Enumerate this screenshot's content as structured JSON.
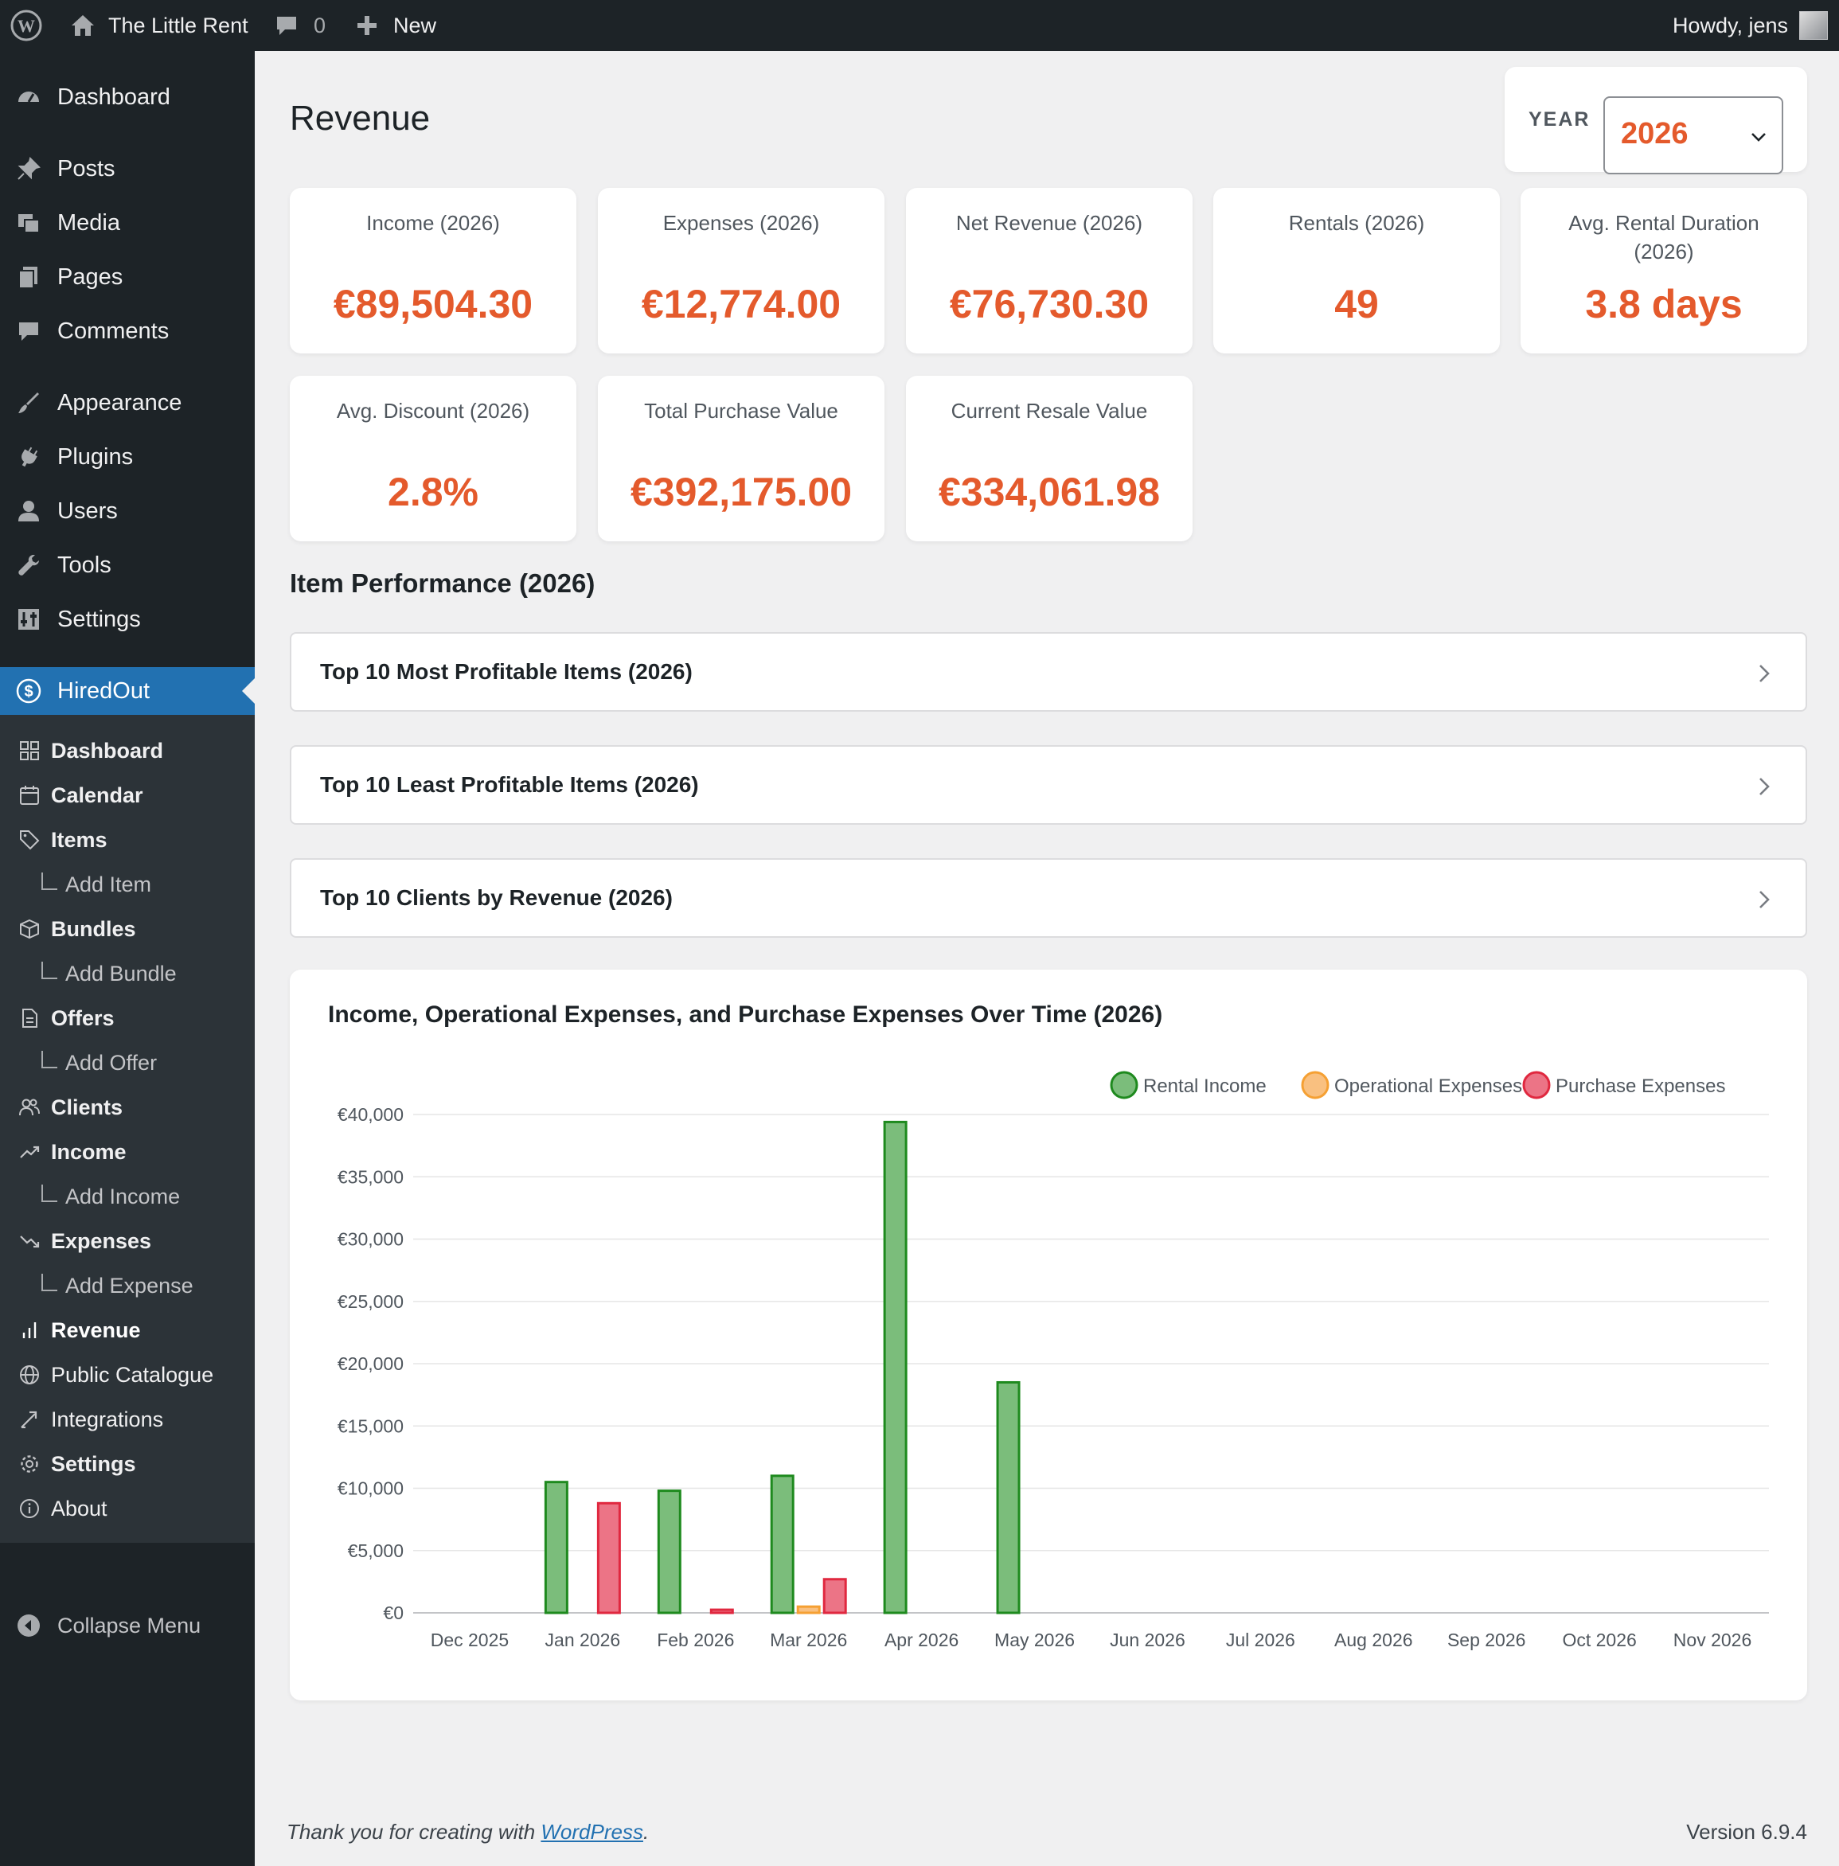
{
  "adminbar": {
    "site_name": "The Little Rent",
    "comments_count": "0",
    "new_label": "New",
    "howdy": "Howdy, jens"
  },
  "sidebar": {
    "items": [
      {
        "label": "Dashboard",
        "icon": "dashboard-icon"
      },
      {
        "label": "Posts",
        "icon": "pin-icon"
      },
      {
        "label": "Media",
        "icon": "media-icon"
      },
      {
        "label": "Pages",
        "icon": "pages-icon"
      },
      {
        "label": "Comments",
        "icon": "comment-icon"
      },
      {
        "label": "Appearance",
        "icon": "brush-icon"
      },
      {
        "label": "Plugins",
        "icon": "plugin-icon"
      },
      {
        "label": "Users",
        "icon": "user-icon"
      },
      {
        "label": "Tools",
        "icon": "wrench-icon"
      },
      {
        "label": "Settings",
        "icon": "settings-icon"
      },
      {
        "label": "HiredOut",
        "icon": "dollar-icon"
      }
    ],
    "submenu": [
      {
        "label": "Dashboard"
      },
      {
        "label": "Calendar"
      },
      {
        "label": "Items"
      },
      {
        "label": "Add Item"
      },
      {
        "label": "Bundles"
      },
      {
        "label": "Add Bundle"
      },
      {
        "label": "Offers"
      },
      {
        "label": "Add Offer"
      },
      {
        "label": "Clients"
      },
      {
        "label": "Income"
      },
      {
        "label": "Add Income"
      },
      {
        "label": "Expenses"
      },
      {
        "label": "Add Expense"
      },
      {
        "label": "Revenue"
      },
      {
        "label": "Public Catalogue"
      },
      {
        "label": "Integrations"
      },
      {
        "label": "Settings"
      },
      {
        "label": "About"
      }
    ],
    "collapse_label": "Collapse Menu"
  },
  "page": {
    "title": "Revenue",
    "year_label": "YEAR",
    "year_value": "2026"
  },
  "stats": [
    {
      "label": "Income (2026)",
      "value": "€89,504.30"
    },
    {
      "label": "Expenses (2026)",
      "value": "€12,774.00"
    },
    {
      "label": "Net Revenue (2026)",
      "value": "€76,730.30"
    },
    {
      "label": "Rentals (2026)",
      "value": "49"
    },
    {
      "label": "Avg. Rental Duration (2026)",
      "value": "3.8 days"
    },
    {
      "label": "Avg. Discount (2026)",
      "value": "2.8%"
    },
    {
      "label": "Total Purchase Value",
      "value": "€392,175.00"
    },
    {
      "label": "Current Resale Value",
      "value": "€334,061.98"
    }
  ],
  "performance": {
    "title": "Item Performance (2026)",
    "accordions": [
      {
        "label": "Top 10 Most Profitable Items (2026)"
      },
      {
        "label": "Top 10 Least Profitable Items (2026)"
      },
      {
        "label": "Top 10 Clients by Revenue (2026)"
      }
    ]
  },
  "chart_data": {
    "type": "bar",
    "title": "Income, Operational Expenses, and Purchase Expenses Over Time (2026)",
    "categories": [
      "Dec 2025",
      "Jan 2026",
      "Feb 2026",
      "Mar 2026",
      "Apr 2026",
      "May 2026",
      "Jun 2026",
      "Jul 2026",
      "Aug 2026",
      "Sep 2026",
      "Oct 2026",
      "Nov 2026"
    ],
    "series": [
      {
        "name": "Rental Income",
        "color": "#1e8a1e",
        "fill": "#7bbd7b",
        "values": [
          0,
          10500,
          9800,
          11000,
          39400,
          18500,
          0,
          0,
          0,
          0,
          0,
          0
        ]
      },
      {
        "name": "Operational Expenses",
        "color": "#f5a033",
        "fill": "#f9c080",
        "values": [
          0,
          0,
          0,
          500,
          0,
          0,
          0,
          0,
          0,
          0,
          0,
          0
        ]
      },
      {
        "name": "Purchase Expenses",
        "color": "#e0283f",
        "fill": "#ec7486",
        "values": [
          0,
          8800,
          250,
          2700,
          0,
          0,
          0,
          0,
          0,
          0,
          0,
          0
        ]
      }
    ],
    "ylim": [
      0,
      40000
    ],
    "yticks": [
      "€0",
      "€5,000",
      "€10,000",
      "€15,000",
      "€20,000",
      "€25,000",
      "€30,000",
      "€35,000",
      "€40,000"
    ],
    "legend": "top-right",
    "grid": true
  },
  "footer": {
    "thanks_prefix": "Thank you for creating with ",
    "link": "WordPress",
    "thanks_suffix": ".",
    "version": "Version 6.9.4"
  }
}
